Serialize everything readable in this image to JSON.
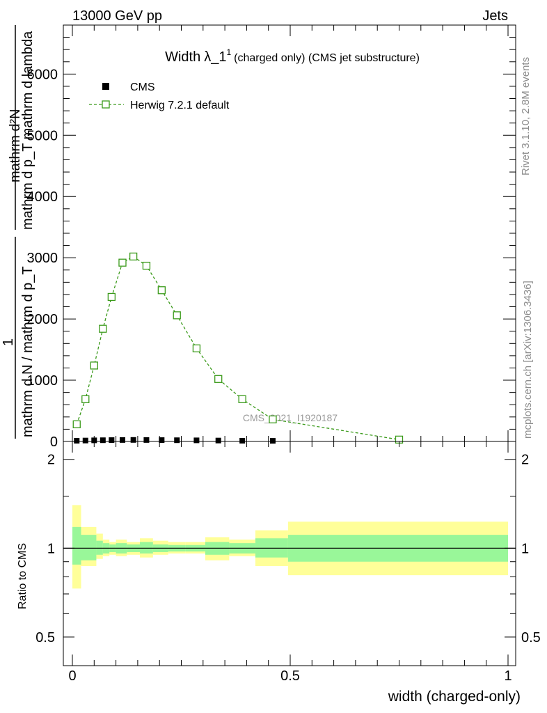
{
  "header": {
    "left": "13000 GeV pp",
    "right": "Jets"
  },
  "side": {
    "rivet": "Rivet 3.1.10,  2.8M events",
    "mcplots": "mcplots.cern.ch [arXiv:1306.3436]"
  },
  "watermark": "CMS_2021_I1920187",
  "chart_data": [
    {
      "type": "line",
      "title": "Width λ_1¹ (charged only) (CMS jet substructure)",
      "title_main": "Width",
      "title_lambda": "λ_1",
      "title_sup": "1",
      "title_rest": "(charged only) (CMS jet substructure)",
      "ylabel_lines": [
        "mathrm d²N",
        "mathrm d p_T mathrm d lambda",
        "1",
        "mathrm d N / mathrm d p_T"
      ],
      "xlim": [
        0,
        1
      ],
      "ylim": [
        0,
        6800
      ],
      "yticks": [
        0,
        1000,
        2000,
        3000,
        4000,
        5000,
        6000
      ],
      "ytick_labels": [
        "0",
        "1000",
        "2000",
        "3000",
        "4000",
        "5000",
        "6000"
      ],
      "legend": [
        {
          "name": "CMS",
          "marker": "filled-square",
          "color": "#000000"
        },
        {
          "name": "Herwig 7.2.1 default",
          "marker": "open-square-dashed",
          "color": "#3a9a1a"
        }
      ],
      "series": [
        {
          "name": "CMS",
          "x": [
            0.01,
            0.03,
            0.05,
            0.07,
            0.09,
            0.115,
            0.14,
            0.17,
            0.205,
            0.24,
            0.285,
            0.335,
            0.39,
            0.46
          ],
          "values": [
            12,
            15,
            18,
            20,
            22,
            24,
            25,
            24,
            22,
            20,
            18,
            15,
            12,
            10
          ]
        },
        {
          "name": "Herwig 7.2.1 default",
          "x": [
            0.01,
            0.03,
            0.05,
            0.07,
            0.09,
            0.115,
            0.14,
            0.17,
            0.205,
            0.24,
            0.285,
            0.335,
            0.39,
            0.46,
            0.75
          ],
          "values": [
            280,
            690,
            1240,
            1840,
            2360,
            2920,
            3020,
            2870,
            2470,
            2060,
            1520,
            1020,
            690,
            360,
            30
          ]
        }
      ]
    },
    {
      "type": "area",
      "ylabel": "Ratio to CMS",
      "xlabel": "width (charged-only)",
      "xlim": [
        0,
        1
      ],
      "xticks": [
        0,
        0.5,
        1
      ],
      "xtick_labels": [
        "0",
        "0.5",
        "1"
      ],
      "yscale": "log",
      "ylim": [
        0.4,
        2.3
      ],
      "yticks": [
        0.5,
        1,
        2
      ],
      "ytick_labels": [
        "0.5",
        "1",
        "2"
      ],
      "reference_line": 1,
      "bins": [
        {
          "lo": 0.0,
          "hi": 0.02,
          "inner_lo": 0.88,
          "inner_hi": 1.18,
          "outer_lo": 0.73,
          "outer_hi": 1.4
        },
        {
          "lo": 0.02,
          "hi": 0.055,
          "inner_lo": 0.91,
          "inner_hi": 1.11,
          "outer_lo": 0.87,
          "outer_hi": 1.18
        },
        {
          "lo": 0.055,
          "hi": 0.07,
          "inner_lo": 0.95,
          "inner_hi": 1.06,
          "outer_lo": 0.92,
          "outer_hi": 1.12
        },
        {
          "lo": 0.07,
          "hi": 0.085,
          "inner_lo": 0.96,
          "inner_hi": 1.04,
          "outer_lo": 0.94,
          "outer_hi": 1.07
        },
        {
          "lo": 0.085,
          "hi": 0.1,
          "inner_lo": 0.97,
          "inner_hi": 1.03,
          "outer_lo": 0.95,
          "outer_hi": 1.05
        },
        {
          "lo": 0.1,
          "hi": 0.125,
          "inner_lo": 0.96,
          "inner_hi": 1.04,
          "outer_lo": 0.94,
          "outer_hi": 1.07
        },
        {
          "lo": 0.125,
          "hi": 0.155,
          "inner_lo": 0.97,
          "inner_hi": 1.03,
          "outer_lo": 0.95,
          "outer_hi": 1.05
        },
        {
          "lo": 0.155,
          "hi": 0.185,
          "inner_lo": 0.96,
          "inner_hi": 1.05,
          "outer_lo": 0.93,
          "outer_hi": 1.08
        },
        {
          "lo": 0.185,
          "hi": 0.22,
          "inner_lo": 0.97,
          "inner_hi": 1.03,
          "outer_lo": 0.95,
          "outer_hi": 1.06
        },
        {
          "lo": 0.22,
          "hi": 0.26,
          "inner_lo": 0.975,
          "inner_hi": 1.025,
          "outer_lo": 0.96,
          "outer_hi": 1.05
        },
        {
          "lo": 0.26,
          "hi": 0.305,
          "inner_lo": 0.975,
          "inner_hi": 1.025,
          "outer_lo": 0.96,
          "outer_hi": 1.05
        },
        {
          "lo": 0.305,
          "hi": 0.36,
          "inner_lo": 0.95,
          "inner_hi": 1.05,
          "outer_lo": 0.91,
          "outer_hi": 1.09
        },
        {
          "lo": 0.36,
          "hi": 0.42,
          "inner_lo": 0.96,
          "inner_hi": 1.04,
          "outer_lo": 0.94,
          "outer_hi": 1.07
        },
        {
          "lo": 0.42,
          "hi": 0.495,
          "inner_lo": 0.93,
          "inner_hi": 1.08,
          "outer_lo": 0.87,
          "outer_hi": 1.15
        },
        {
          "lo": 0.495,
          "hi": 1.0,
          "inner_lo": 0.9,
          "inner_hi": 1.11,
          "outer_lo": 0.81,
          "outer_hi": 1.23
        }
      ]
    }
  ],
  "colors": {
    "inner_band": "#99f799",
    "outer_band": "#ffff99",
    "herwig": "#3a9a1a",
    "cms": "#000000",
    "side_text": "#8c8c8c"
  }
}
